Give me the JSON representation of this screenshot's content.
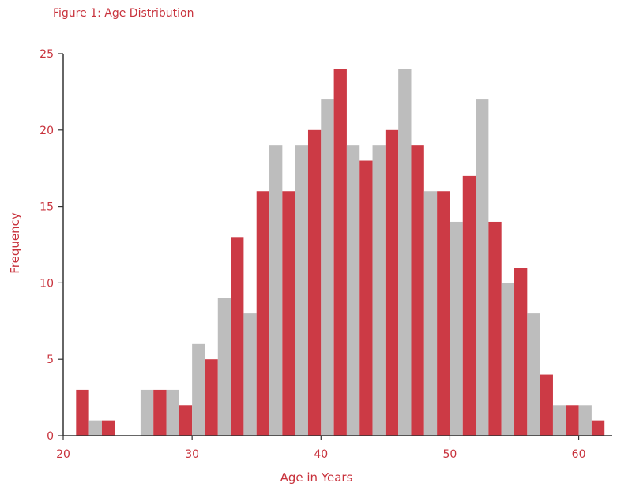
{
  "chart_data": {
    "type": "bar",
    "title": "Figure 1: Age Distribution",
    "xlabel": "Age in Years",
    "ylabel": "Frequency",
    "xlim": [
      20,
      62.6
    ],
    "ylim": [
      0,
      25
    ],
    "xticks": [
      20,
      30,
      40,
      50,
      60
    ],
    "yticks": [
      0,
      5,
      10,
      15,
      20,
      25
    ],
    "bin_width": 1,
    "grid": false,
    "colors": [
      "#cc3a45",
      "#bdbdbd"
    ],
    "x": [
      21,
      22,
      23,
      26,
      27,
      28,
      29,
      30,
      31,
      32,
      33,
      34,
      35,
      36,
      37,
      38,
      39,
      40,
      41,
      42,
      43,
      44,
      45,
      46,
      47,
      48,
      49,
      50,
      51,
      52,
      53,
      54,
      55,
      56,
      57,
      58,
      59,
      60,
      61,
      62
    ],
    "values": [
      3,
      1,
      1,
      3,
      3,
      3,
      2,
      6,
      5,
      9,
      13,
      8,
      16,
      19,
      16,
      19,
      20,
      22,
      24,
      19,
      18,
      19,
      20,
      24,
      19,
      16,
      16,
      14,
      17,
      22,
      14,
      10,
      11,
      8,
      4,
      2,
      2,
      2,
      1,
      0
    ]
  }
}
